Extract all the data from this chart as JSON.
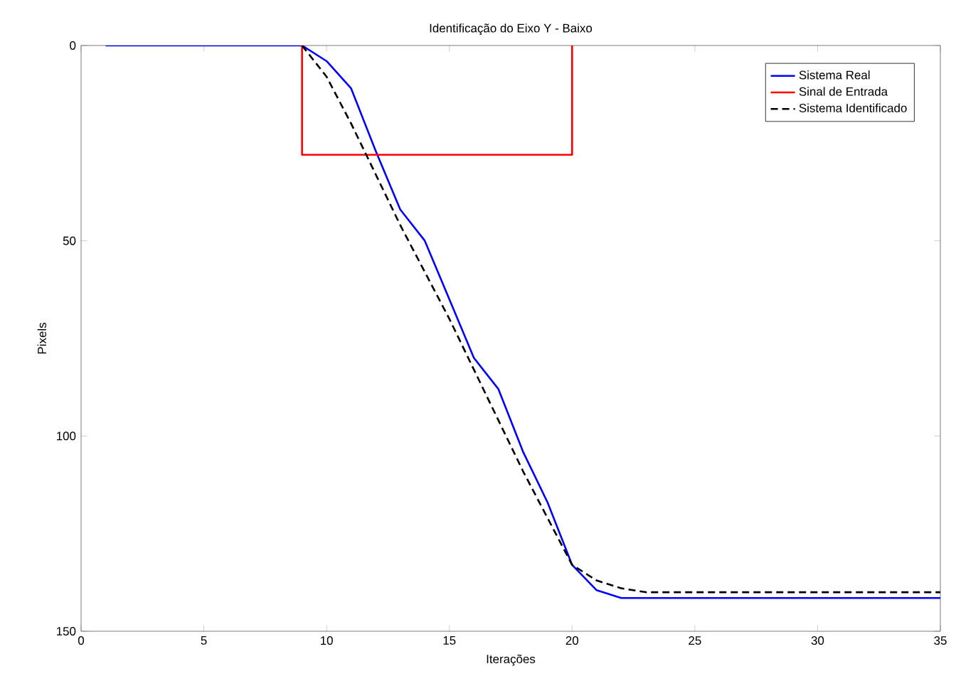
{
  "chart_data": {
    "type": "line",
    "title": "Identificação do Eixo Y - Baixo",
    "xlabel": "Iterações",
    "ylabel": "Pixels",
    "xlim": [
      0,
      35
    ],
    "ylim": [
      150,
      0
    ],
    "xticks": [
      0,
      5,
      10,
      15,
      20,
      25,
      30,
      35
    ],
    "yticks": [
      0,
      50,
      100,
      150
    ],
    "legend": "top right",
    "grid": false,
    "series": [
      {
        "name": "Sistema Real",
        "color": "#0000ff",
        "line_style": "solid",
        "x": [
          1,
          2,
          3,
          4,
          5,
          6,
          7,
          8,
          9,
          10,
          11,
          12,
          13,
          14,
          15,
          16,
          17,
          18,
          19,
          20,
          21,
          22,
          23,
          24,
          25,
          26,
          27,
          28,
          29,
          30,
          31,
          32,
          33,
          34,
          35
        ],
        "values": [
          0,
          0,
          0,
          0,
          0,
          0,
          0,
          0,
          0,
          4,
          11,
          27,
          42,
          50,
          65,
          80,
          88,
          104,
          117,
          133,
          139.5,
          141.5,
          141.5,
          141.5,
          141.5,
          141.5,
          141.5,
          141.5,
          141.5,
          141.5,
          141.5,
          141.5,
          141.5,
          141.5,
          141.5
        ]
      },
      {
        "name": "Sinal de Entrada",
        "color": "#ff0000",
        "line_style": "solid",
        "x": [
          9,
          9,
          20,
          20
        ],
        "values": [
          0,
          28,
          28,
          0
        ]
      },
      {
        "name": "Sistema Identificado",
        "color": "#000000",
        "line_style": "dashed",
        "x": [
          9,
          10,
          11,
          12,
          13,
          14,
          15,
          16,
          17,
          18,
          19,
          20,
          21,
          22,
          23,
          24,
          25,
          26,
          27,
          28,
          29,
          30,
          31,
          32,
          33,
          34,
          35
        ],
        "values": [
          0,
          8,
          20,
          33,
          46,
          58,
          70,
          83,
          96,
          109,
          121,
          133,
          137,
          139,
          140,
          140,
          140,
          140,
          140,
          140,
          140,
          140,
          140,
          140,
          140,
          140,
          140
        ]
      }
    ]
  }
}
